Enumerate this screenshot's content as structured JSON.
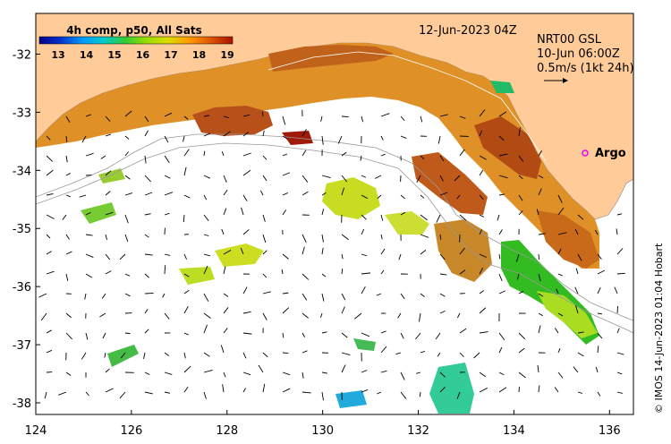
{
  "map": {
    "product_title": "4h comp, p50, All Sats",
    "date_label": "12-Jun-2023 04Z",
    "current_info": {
      "line1": "NRT00 GSL",
      "line2": "10-Jun 06:00Z",
      "line3": "0.5m/s (1kt 24h)"
    },
    "argo_label": "Argo",
    "credit": "© IMOS 14-Jun-2023 01:04 Hobart",
    "colorbar": {
      "ticks": [
        "13",
        "14",
        "15",
        "16",
        "17",
        "18",
        "19"
      ],
      "colors": [
        "#00008b",
        "#0033cc",
        "#0099ff",
        "#00cccc",
        "#33cc33",
        "#99dd00",
        "#dddd00",
        "#ff9900",
        "#dd5500",
        "#aa1100"
      ]
    },
    "x_ticks": [
      "124",
      "126",
      "128",
      "130",
      "132",
      "134",
      "136"
    ],
    "y_ticks": [
      "-32",
      "-33",
      "-34",
      "-35",
      "-36",
      "-37",
      "-38"
    ],
    "lon_range": [
      124,
      136.5
    ],
    "lat_range": [
      -38.2,
      -31.3
    ],
    "land_color": "#ffcc99"
  }
}
